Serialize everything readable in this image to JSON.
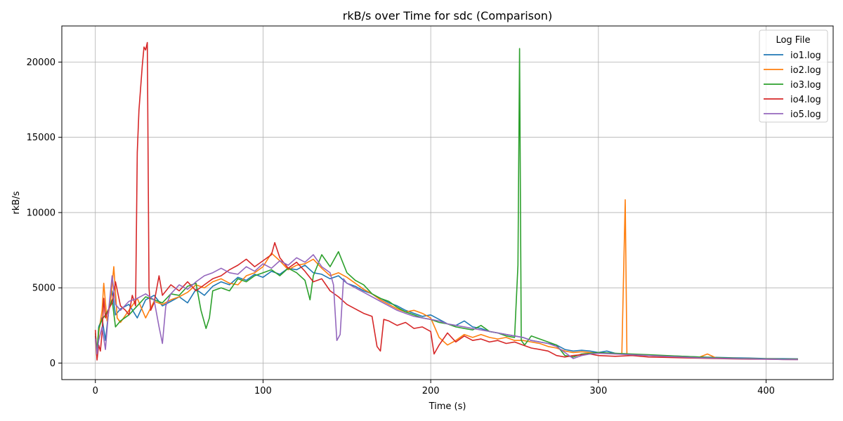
{
  "chart_data": {
    "type": "line",
    "title": "rkB/s over Time for sdc (Comparison)",
    "xlabel": "Time (s)",
    "ylabel": "rkB/s",
    "xlim": [
      -20,
      440
    ],
    "ylim": [
      -1100,
      22400
    ],
    "xticks": [
      0,
      100,
      200,
      300,
      400
    ],
    "yticks": [
      0,
      5000,
      10000,
      15000,
      20000
    ],
    "grid": true,
    "legend": {
      "title": "Log File",
      "placement": "top-right"
    },
    "series": [
      {
        "name": "io1.log",
        "color": "#1f77b4",
        "x": [
          0,
          1,
          2,
          4,
          6,
          8,
          10,
          12,
          15,
          20,
          25,
          30,
          35,
          40,
          45,
          50,
          55,
          60,
          65,
          70,
          75,
          80,
          85,
          90,
          95,
          100,
          105,
          110,
          115,
          120,
          125,
          130,
          135,
          140,
          145,
          150,
          155,
          160,
          165,
          170,
          175,
          180,
          185,
          190,
          195,
          200,
          205,
          210,
          215,
          220,
          225,
          230,
          235,
          240,
          245,
          250,
          255,
          260,
          265,
          270,
          275,
          280,
          285,
          290,
          295,
          300,
          305,
          310,
          315,
          320,
          330,
          340,
          350,
          360,
          370,
          380,
          390,
          400,
          410,
          419
        ],
        "y": [
          1800,
          500,
          2400,
          3000,
          1500,
          3500,
          4800,
          3200,
          3600,
          3900,
          3000,
          4200,
          4500,
          3800,
          4100,
          4400,
          4000,
          4900,
          4500,
          5100,
          5400,
          5200,
          5700,
          5500,
          5900,
          5700,
          6100,
          5900,
          6300,
          6200,
          6500,
          6000,
          5900,
          5600,
          5800,
          5300,
          5100,
          4800,
          4600,
          4300,
          4000,
          3800,
          3500,
          3300,
          3100,
          3200,
          2900,
          2600,
          2500,
          2800,
          2400,
          2300,
          2100,
          2000,
          1900,
          1800,
          1700,
          1500,
          1400,
          1300,
          1200,
          900,
          800,
          850,
          800,
          700,
          800,
          650,
          600,
          550,
          520,
          480,
          450,
          400,
          380,
          350,
          330,
          300,
          290,
          280
        ]
      },
      {
        "name": "io2.log",
        "color": "#ff7f0e",
        "x": [
          0,
          1,
          2,
          4,
          5,
          7,
          9,
          11,
          13,
          15,
          20,
          25,
          30,
          35,
          40,
          45,
          50,
          55,
          60,
          65,
          70,
          75,
          80,
          85,
          90,
          95,
          100,
          105,
          110,
          115,
          120,
          125,
          130,
          135,
          140,
          145,
          150,
          155,
          160,
          165,
          170,
          175,
          180,
          185,
          190,
          195,
          200,
          205,
          210,
          215,
          220,
          225,
          230,
          235,
          240,
          245,
          250,
          255,
          260,
          265,
          270,
          275,
          280,
          285,
          290,
          295,
          300,
          305,
          310,
          314,
          316,
          317,
          318,
          320,
          330,
          340,
          350,
          360,
          365,
          370,
          380,
          390,
          400,
          410,
          419
        ],
        "y": [
          1500,
          300,
          2000,
          3500,
          5300,
          2800,
          4000,
          6400,
          3000,
          2700,
          3500,
          4300,
          3000,
          4100,
          3900,
          4200,
          4400,
          4700,
          5200,
          5000,
          5400,
          5600,
          5300,
          5200,
          5800,
          6000,
          6400,
          7300,
          6800,
          6200,
          6500,
          6600,
          6900,
          6300,
          5800,
          6000,
          5700,
          5300,
          4900,
          4600,
          4200,
          3900,
          3600,
          3400,
          3500,
          3300,
          3000,
          1700,
          1200,
          1500,
          1900,
          1700,
          1900,
          1700,
          1600,
          1700,
          1500,
          1500,
          1400,
          1300,
          1100,
          1000,
          800,
          700,
          750,
          700,
          650,
          650,
          600,
          600,
          10850,
          600,
          500,
          550,
          500,
          450,
          420,
          380,
          600,
          350,
          320,
          300,
          280,
          260,
          250
        ]
      },
      {
        "name": "io3.log",
        "color": "#2ca02c",
        "x": [
          0,
          1,
          2,
          4,
          6,
          8,
          10,
          12,
          15,
          20,
          25,
          30,
          35,
          40,
          45,
          50,
          55,
          60,
          63,
          66,
          68,
          70,
          75,
          80,
          85,
          90,
          95,
          100,
          105,
          110,
          115,
          120,
          125,
          128,
          130,
          135,
          140,
          145,
          150,
          155,
          160,
          165,
          170,
          175,
          180,
          185,
          190,
          195,
          200,
          205,
          210,
          215,
          220,
          225,
          230,
          235,
          240,
          245,
          250,
          252,
          253,
          254,
          256,
          260,
          265,
          270,
          275,
          280,
          285,
          290,
          295,
          300,
          310,
          320,
          330,
          340,
          350,
          360,
          370,
          380,
          390,
          400,
          410,
          419
        ],
        "y": [
          2000,
          800,
          2300,
          2900,
          3200,
          3600,
          4200,
          2400,
          2800,
          3200,
          3800,
          4400,
          4200,
          4000,
          4600,
          4500,
          5100,
          5300,
          3500,
          2300,
          3000,
          4800,
          5000,
          4800,
          5600,
          5400,
          5800,
          6000,
          6200,
          5800,
          6300,
          6000,
          5500,
          4200,
          5800,
          7200,
          6400,
          7400,
          6000,
          5500,
          5200,
          4600,
          4300,
          4100,
          3700,
          3400,
          3200,
          3000,
          2900,
          2700,
          2600,
          2400,
          2300,
          2200,
          2500,
          2100,
          2000,
          1800,
          1700,
          6500,
          20900,
          1500,
          1200,
          1800,
          1600,
          1400,
          1200,
          500,
          400,
          600,
          650,
          700,
          650,
          600,
          550,
          500,
          450,
          400,
          350,
          320,
          300,
          280,
          260,
          250
        ]
      },
      {
        "name": "io4.log",
        "color": "#d62728",
        "x": [
          0,
          1,
          2,
          3,
          4,
          5,
          6,
          8,
          10,
          12,
          15,
          18,
          20,
          22,
          24,
          25,
          26,
          28,
          29,
          30,
          31,
          32,
          33,
          35,
          38,
          40,
          45,
          50,
          55,
          60,
          65,
          70,
          75,
          80,
          85,
          90,
          95,
          100,
          105,
          107,
          110,
          115,
          120,
          125,
          130,
          135,
          140,
          145,
          150,
          155,
          160,
          165,
          168,
          170,
          172,
          175,
          180,
          185,
          190,
          195,
          200,
          202,
          205,
          210,
          215,
          220,
          225,
          230,
          235,
          240,
          245,
          250,
          255,
          260,
          265,
          270,
          275,
          280,
          285,
          290,
          295,
          300,
          310,
          320,
          330,
          340,
          350,
          360,
          370,
          380,
          390,
          400,
          410,
          419
        ],
        "y": [
          2200,
          200,
          1200,
          800,
          2000,
          4300,
          3000,
          3600,
          4000,
          5400,
          3800,
          3500,
          3200,
          4500,
          3800,
          14000,
          16800,
          19800,
          21000,
          20800,
          21300,
          5000,
          3500,
          4000,
          5800,
          4500,
          5200,
          4800,
          5400,
          4800,
          5200,
          5600,
          5800,
          6200,
          6500,
          6900,
          6400,
          6800,
          7200,
          8000,
          7000,
          6300,
          6700,
          6100,
          5400,
          5600,
          4800,
          4400,
          3900,
          3600,
          3300,
          3100,
          1100,
          800,
          2900,
          2800,
          2500,
          2700,
          2300,
          2400,
          2100,
          600,
          1200,
          2000,
          1400,
          1800,
          1500,
          1600,
          1400,
          1500,
          1300,
          1400,
          1200,
          1000,
          900,
          800,
          500,
          400,
          500,
          550,
          600,
          500,
          450,
          500,
          400,
          380,
          350,
          320,
          300,
          280,
          260,
          250,
          240,
          230
        ]
      },
      {
        "name": "io5.log",
        "color": "#9467bd",
        "x": [
          0,
          1,
          2,
          4,
          6,
          8,
          10,
          12,
          15,
          20,
          25,
          30,
          35,
          38,
          40,
          42,
          45,
          50,
          55,
          60,
          65,
          70,
          75,
          80,
          85,
          90,
          95,
          100,
          105,
          110,
          115,
          120,
          125,
          130,
          135,
          140,
          142,
          144,
          146,
          148,
          150,
          155,
          160,
          165,
          170,
          175,
          180,
          185,
          190,
          195,
          200,
          205,
          210,
          215,
          220,
          225,
          230,
          235,
          240,
          245,
          250,
          255,
          260,
          265,
          270,
          275,
          280,
          285,
          290,
          295,
          300,
          310,
          320,
          330,
          340,
          350,
          360,
          370,
          380,
          390,
          400,
          410,
          419
        ],
        "y": [
          1600,
          600,
          1500,
          2400,
          900,
          3600,
          5800,
          3900,
          3500,
          4100,
          4300,
          4600,
          4200,
          2400,
          1300,
          3800,
          4600,
          5200,
          4900,
          5400,
          5800,
          6000,
          6300,
          6000,
          5900,
          6400,
          6100,
          6600,
          6300,
          6800,
          6500,
          7000,
          6700,
          7200,
          6400,
          6000,
          5200,
          1500,
          1900,
          5600,
          5300,
          5000,
          4700,
          4400,
          4100,
          3800,
          3500,
          3300,
          3100,
          3000,
          2900,
          2800,
          2600,
          2500,
          2400,
          2300,
          2200,
          2100,
          2000,
          1900,
          1800,
          1700,
          1500,
          1400,
          1300,
          1100,
          700,
          300,
          500,
          600,
          650,
          600,
          550,
          500,
          450,
          400,
          350,
          320,
          300,
          280,
          260,
          240,
          230
        ]
      }
    ]
  }
}
